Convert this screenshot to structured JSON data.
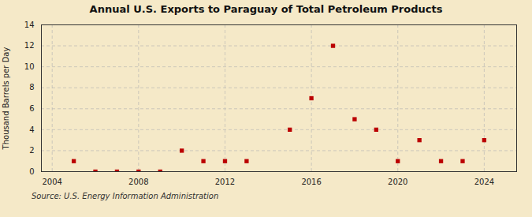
{
  "chart_data": {
    "type": "scatter",
    "title": "Annual U.S. Exports to Paraguay of Total Petroleum Products",
    "ylabel": "Thousand Barrels per Day",
    "source": "Source: U.S. Energy Information Administration",
    "x": [
      2005,
      2006,
      2007,
      2008,
      2009,
      2010,
      2011,
      2012,
      2013,
      2015,
      2016,
      2017,
      2018,
      2019,
      2020,
      2021,
      2022,
      2023,
      2024
    ],
    "values": [
      1,
      0,
      0,
      0,
      0,
      2,
      1,
      1,
      1,
      4,
      7,
      12,
      5,
      4,
      1,
      3,
      1,
      1,
      3
    ],
    "color": "#bb0000",
    "marker": "square",
    "xlim": [
      2003.5,
      2025.5
    ],
    "xticks": [
      2004,
      2008,
      2012,
      2016,
      2020,
      2024
    ],
    "ylim": [
      0,
      14
    ],
    "yticks": [
      0,
      2,
      4,
      6,
      8,
      10,
      12,
      14
    ],
    "grid": true
  }
}
